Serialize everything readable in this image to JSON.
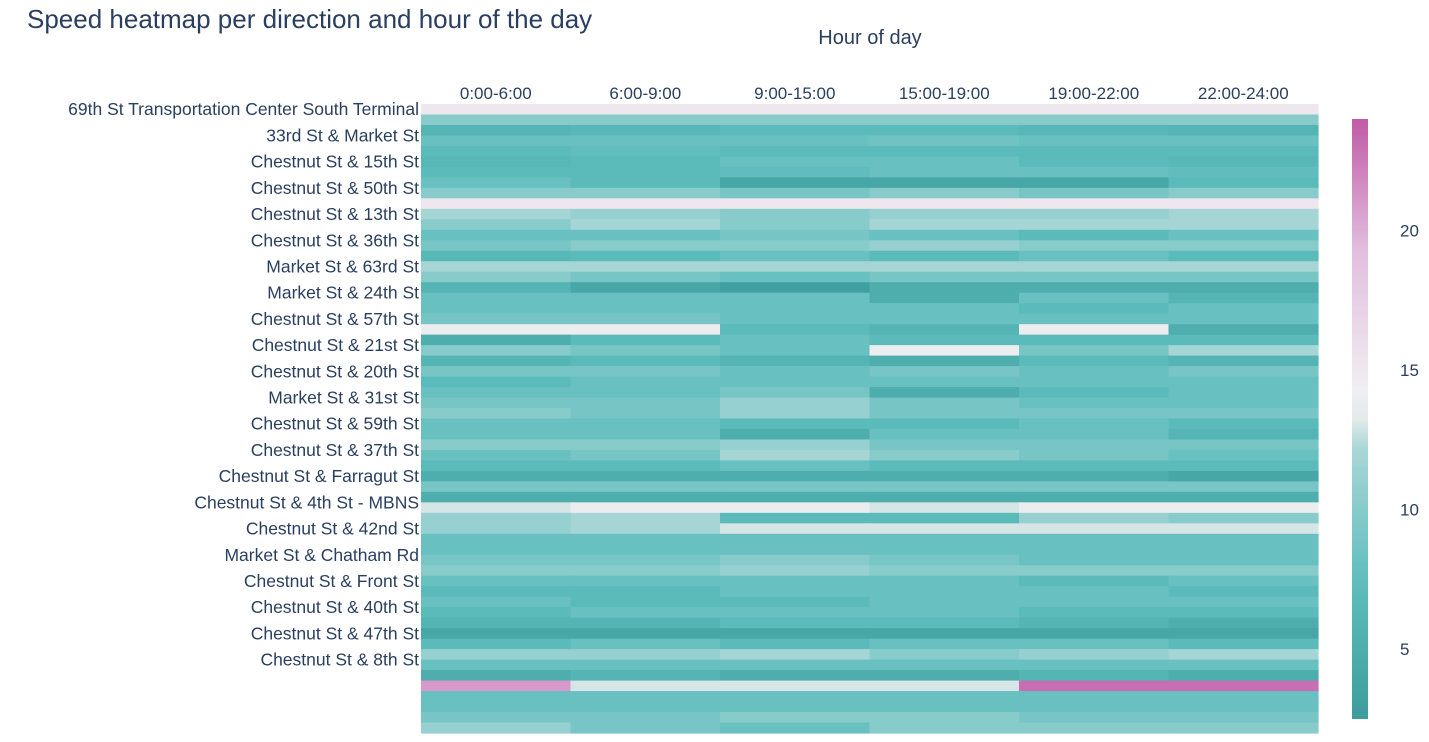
{
  "title": "Speed heatmap per direction and hour of the day",
  "chart_data": {
    "type": "heatmap",
    "title": "Speed heatmap per direction and hour of the day",
    "xlabel": "Hour of day",
    "ylabel": "",
    "x": [
      "0:00-6:00",
      "6:00-9:00",
      "9:00-15:00",
      "15:00-19:00",
      "19:00-22:00",
      "22:00-24:00"
    ],
    "x_axis_position": "top",
    "y_tick_labels": [
      "69th St Transportation Center South Terminal",
      "33rd St & Market St",
      "Chestnut St & 15th St",
      "Chestnut St & 50th St",
      "Chestnut St & 13th St",
      "Chestnut St & 36th St",
      "Market St & 63rd St",
      "Market St & 24th St",
      "Chestnut St & 57th St",
      "Chestnut St & 21st St",
      "Chestnut St & 20th St",
      "Market St & 31st St",
      "Chestnut St & 59th St",
      "Chestnut St & 37th St",
      "Chestnut St & Farragut St",
      "Chestnut St & 4th St - MBNS",
      "Chestnut St & 42nd St",
      "Market St & Chatham Rd",
      "Chestnut St & Front St",
      "Chestnut St & 40th St",
      "Chestnut St & 47th St",
      "Chestnut St & 8th St"
    ],
    "z": [
      [
        15,
        15,
        15,
        15,
        15,
        15
      ],
      [
        10,
        10,
        10,
        10,
        10,
        10
      ],
      [
        6,
        6.5,
        7,
        7,
        6.5,
        6
      ],
      [
        8,
        8,
        8,
        8.5,
        8,
        8
      ],
      [
        7,
        7.5,
        7,
        7,
        7,
        7
      ],
      [
        6.5,
        7,
        8,
        8,
        7,
        6.5
      ],
      [
        7,
        7,
        7.5,
        8,
        8,
        7.5
      ],
      [
        8,
        7,
        4,
        4,
        4,
        7
      ],
      [
        10,
        10,
        9,
        10,
        9,
        10
      ],
      [
        15,
        15,
        15,
        15,
        15,
        15
      ],
      [
        12,
        11,
        10,
        11,
        11,
        12
      ],
      [
        10,
        12,
        10,
        12,
        12,
        12
      ],
      [
        8,
        8,
        9,
        8,
        7,
        8
      ],
      [
        9,
        10,
        10,
        11,
        10,
        10
      ],
      [
        6.5,
        7,
        8,
        7,
        8,
        7
      ],
      [
        12,
        12,
        12,
        12,
        12,
        12
      ],
      [
        10,
        9,
        8,
        9,
        9,
        9
      ],
      [
        6,
        4,
        3,
        5,
        5,
        5
      ],
      [
        8,
        8,
        8,
        5,
        8,
        6
      ],
      [
        8,
        8,
        8,
        8,
        7,
        8
      ],
      [
        9,
        9,
        8,
        8,
        8,
        8
      ],
      [
        14,
        14,
        7,
        6,
        14,
        5
      ],
      [
        5,
        7,
        8,
        7,
        7,
        7
      ],
      [
        10,
        9,
        8,
        14,
        9,
        12
      ],
      [
        6,
        7,
        6,
        5,
        7,
        6
      ],
      [
        9,
        9,
        8,
        9,
        8,
        9
      ],
      [
        7,
        8,
        8,
        8,
        8,
        8
      ],
      [
        8,
        8,
        9,
        5,
        7,
        8
      ],
      [
        9,
        9,
        11,
        9,
        8,
        8
      ],
      [
        10,
        9,
        11,
        9,
        9,
        9
      ],
      [
        8,
        8,
        7,
        7,
        8,
        7
      ],
      [
        8,
        8,
        5,
        8,
        8,
        6
      ],
      [
        10,
        10,
        11,
        9,
        9,
        9
      ],
      [
        8,
        9,
        12,
        10,
        9,
        8
      ],
      [
        7,
        7,
        8,
        7,
        7,
        7
      ],
      [
        5,
        5,
        5,
        5,
        5,
        4
      ],
      [
        9,
        9,
        9,
        9,
        9,
        9
      ],
      [
        5,
        5,
        5,
        5,
        5,
        5
      ],
      [
        13,
        14,
        14,
        13,
        14,
        14
      ],
      [
        11,
        12,
        7,
        7,
        11,
        10
      ],
      [
        11,
        12,
        13,
        13,
        13,
        13
      ],
      [
        8,
        8,
        8,
        8,
        8,
        8
      ],
      [
        8,
        8,
        8,
        8,
        8,
        8
      ],
      [
        9,
        9,
        10,
        9,
        8,
        8
      ],
      [
        10,
        10,
        11,
        10,
        10,
        10
      ],
      [
        8,
        8,
        8,
        8,
        7,
        8
      ],
      [
        7,
        7,
        8,
        8,
        8,
        7
      ],
      [
        8,
        7,
        7,
        8,
        8,
        8
      ],
      [
        7,
        8,
        8,
        8,
        7,
        7
      ],
      [
        6,
        6,
        7,
        7,
        6,
        5
      ],
      [
        4,
        4,
        4,
        4,
        4,
        4
      ],
      [
        7,
        8,
        7,
        8,
        8,
        7
      ],
      [
        11,
        11,
        12,
        10,
        11,
        12
      ],
      [
        8,
        8,
        8,
        8,
        8,
        8
      ],
      [
        5,
        6,
        5,
        5,
        6,
        5
      ],
      [
        21,
        13,
        13,
        13,
        23,
        23
      ],
      [
        8,
        8,
        8,
        8,
        8,
        8
      ],
      [
        8,
        8,
        8,
        8,
        8,
        8
      ],
      [
        9,
        9,
        10,
        10,
        9,
        9
      ],
      [
        11,
        9,
        8,
        10,
        10,
        10
      ]
    ],
    "label_every": 2.5,
    "colorscale": [
      [
        0,
        "#3d9c9c"
      ],
      [
        0.22,
        "#5dbcbc"
      ],
      [
        0.45,
        "#a9d6d6"
      ],
      [
        0.5,
        "#e4eaea"
      ],
      [
        0.55,
        "#f0eef0"
      ],
      [
        0.78,
        "#e2bede"
      ],
      [
        1,
        "#c05aa6"
      ]
    ],
    "zmin": 2.5,
    "zmax": 24,
    "colorbar_ticks": [
      5,
      10,
      15,
      20
    ],
    "grid": false,
    "legend": "colorbar-right"
  }
}
